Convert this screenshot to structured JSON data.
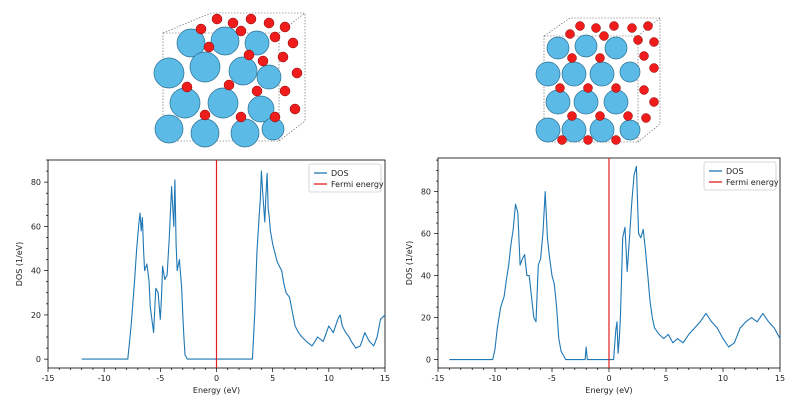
{
  "chart_data": [
    {
      "type": "line",
      "xlabel": "Energy (eV)",
      "ylabel": "DOS (1/eV)",
      "xlim": [
        -15,
        15
      ],
      "ylim": [
        -4,
        90
      ],
      "xticks": [
        "-15",
        "-10",
        "-5",
        "0",
        "5",
        "10",
        "15"
      ],
      "yticks": [
        "0",
        "20",
        "40",
        "60",
        "80"
      ],
      "legend": {
        "position": "top-right",
        "entries": [
          "DOS",
          "Fermi energy"
        ]
      },
      "fermi_energy": 0,
      "grid": false,
      "series": [
        {
          "name": "DOS",
          "color": "#1f77b4",
          "x": [
            -12,
            -7.9,
            -7.6,
            -7.3,
            -7.1,
            -6.9,
            -6.8,
            -6.7,
            -6.6,
            -6.5,
            -6.4,
            -6.2,
            -6.0,
            -5.9,
            -5.8,
            -5.6,
            -5.4,
            -5.2,
            -5.0,
            -4.9,
            -4.8,
            -4.6,
            -4.4,
            -4.2,
            -4.0,
            -3.8,
            -3.7,
            -3.6,
            -3.5,
            -3.3,
            -3.1,
            -3.0,
            -2.9,
            -2.8,
            -2.6,
            -2.4,
            3.2,
            3.4,
            3.6,
            3.8,
            3.9,
            4.0,
            4.1,
            4.3,
            4.4,
            4.5,
            4.6,
            4.7,
            4.8,
            5.0,
            5.2,
            5.4,
            5.6,
            5.8,
            6.0,
            6.2,
            6.5,
            6.8,
            7.0,
            7.3,
            7.6,
            8.0,
            8.5,
            9.0,
            9.5,
            10.0,
            10.4,
            10.8,
            11.0,
            11.2,
            11.5,
            11.8,
            12.0,
            12.4,
            12.8,
            13.2,
            13.6,
            14.0,
            14.3,
            14.6,
            15.0
          ],
          "y": [
            0,
            0,
            15,
            35,
            50,
            62,
            66,
            58,
            64,
            50,
            40,
            43,
            35,
            24,
            20,
            12,
            32,
            30,
            18,
            28,
            42,
            36,
            38,
            55,
            78,
            60,
            81,
            52,
            40,
            45,
            32,
            20,
            10,
            2,
            0,
            0,
            0,
            20,
            48,
            65,
            72,
            85,
            76,
            62,
            74,
            84,
            68,
            64,
            58,
            52,
            48,
            44,
            42,
            40,
            34,
            30,
            28,
            20,
            15,
            12,
            10,
            8,
            6,
            10,
            8,
            15,
            12,
            18,
            20,
            15,
            12,
            10,
            8,
            5,
            6,
            12,
            8,
            6,
            10,
            18,
            20
          ]
        }
      ]
    },
    {
      "type": "line",
      "xlabel": "Energy (eV)",
      "ylabel": "DOS (1/eV)",
      "xlim": [
        -15,
        15
      ],
      "ylim": [
        -4,
        96
      ],
      "xticks": [
        "-15",
        "-10",
        "-5",
        "0",
        "5",
        "10",
        "15"
      ],
      "yticks": [
        "0",
        "20",
        "40",
        "60",
        "80"
      ],
      "legend": {
        "position": "top-right",
        "entries": [
          "DOS",
          "Fermi energy"
        ]
      },
      "fermi_energy": 0,
      "grid": false,
      "series": [
        {
          "name": "DOS",
          "color": "#1f77b4",
          "x": [
            -14,
            -10.2,
            -10.0,
            -9.8,
            -9.5,
            -9.2,
            -9.0,
            -8.8,
            -8.6,
            -8.4,
            -8.2,
            -8.0,
            -7.8,
            -7.6,
            -7.4,
            -7.2,
            -7.0,
            -6.8,
            -6.6,
            -6.4,
            -6.2,
            -6.0,
            -5.8,
            -5.6,
            -5.4,
            -5.2,
            -5.0,
            -4.8,
            -4.6,
            -4.4,
            -4.2,
            -4.0,
            -3.8,
            -3.5,
            -3.0,
            -2.5,
            -2.1,
            -2.0,
            -1.9,
            -1.5,
            -0.5,
            0.4,
            0.6,
            0.7,
            0.8,
            0.9,
            1.0,
            1.2,
            1.4,
            1.6,
            1.8,
            2.0,
            2.2,
            2.4,
            2.6,
            2.8,
            3.0,
            3.2,
            3.4,
            3.6,
            3.8,
            4.0,
            4.4,
            4.8,
            5.2,
            5.6,
            6.0,
            6.5,
            7.0,
            7.5,
            8.0,
            8.5,
            9.0,
            9.5,
            10.0,
            10.5,
            11.0,
            11.5,
            12.0,
            12.5,
            13.0,
            13.5,
            14.0,
            14.5,
            15.0
          ],
          "y": [
            0,
            0,
            5,
            15,
            25,
            30,
            38,
            45,
            55,
            62,
            74,
            70,
            45,
            48,
            50,
            40,
            40,
            30,
            20,
            18,
            45,
            48,
            60,
            80,
            58,
            48,
            40,
            36,
            25,
            10,
            4,
            2,
            0,
            0,
            0,
            0,
            0,
            6,
            0,
            0,
            0,
            0,
            14,
            18,
            3,
            10,
            20,
            58,
            63,
            42,
            58,
            75,
            88,
            92,
            60,
            58,
            62,
            52,
            40,
            28,
            20,
            15,
            12,
            10,
            12,
            8,
            10,
            8,
            12,
            15,
            18,
            22,
            18,
            15,
            10,
            6,
            8,
            15,
            18,
            20,
            18,
            22,
            18,
            15,
            10
          ]
        }
      ]
    }
  ]
}
